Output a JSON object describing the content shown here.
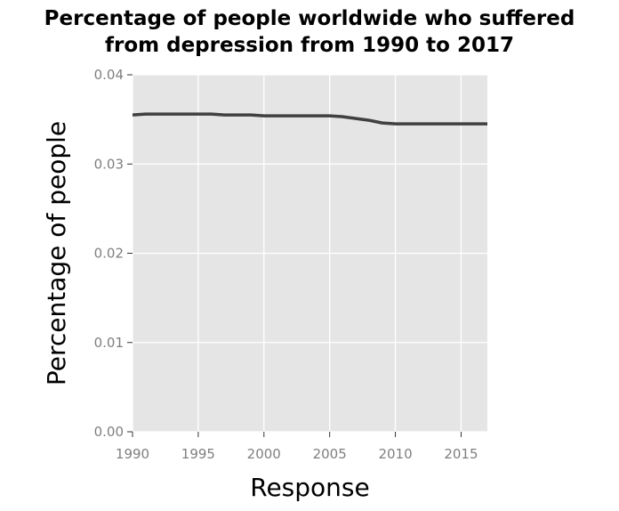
{
  "chart_data": {
    "type": "line",
    "title_lines": [
      "Percentage of people worldwide who suffered",
      "from depression from 1990 to 2017"
    ],
    "xlabel": "Response",
    "ylabel": "Percentage of people",
    "xlim": [
      1990,
      2017
    ],
    "ylim": [
      0,
      0.04
    ],
    "x_ticks": [
      1990,
      1995,
      2000,
      2005,
      2010,
      2015
    ],
    "y_ticks": [
      0.0,
      0.01,
      0.02,
      0.03,
      0.04
    ],
    "x_tick_labels": [
      "1990",
      "1995",
      "2000",
      "2005",
      "2010",
      "2015"
    ],
    "y_tick_labels": [
      "0.00",
      "0.01",
      "0.02",
      "0.03",
      "0.04"
    ],
    "grid": true,
    "background": "#e5e5e5",
    "line_color": "#404040",
    "series": [
      {
        "x": [
          1990,
          1991,
          1992,
          1993,
          1994,
          1995,
          1996,
          1997,
          1998,
          1999,
          2000,
          2001,
          2002,
          2003,
          2004,
          2005,
          2006,
          2007,
          2008,
          2009,
          2010,
          2011,
          2012,
          2013,
          2014,
          2015,
          2016,
          2017
        ],
        "values": [
          0.0355,
          0.0356,
          0.0356,
          0.0356,
          0.0356,
          0.0356,
          0.0356,
          0.0355,
          0.0355,
          0.0355,
          0.0354,
          0.0354,
          0.0354,
          0.0354,
          0.0354,
          0.0354,
          0.0353,
          0.0351,
          0.0349,
          0.0346,
          0.0345,
          0.0345,
          0.0345,
          0.0345,
          0.0345,
          0.0345,
          0.0345,
          0.0345
        ]
      }
    ]
  }
}
